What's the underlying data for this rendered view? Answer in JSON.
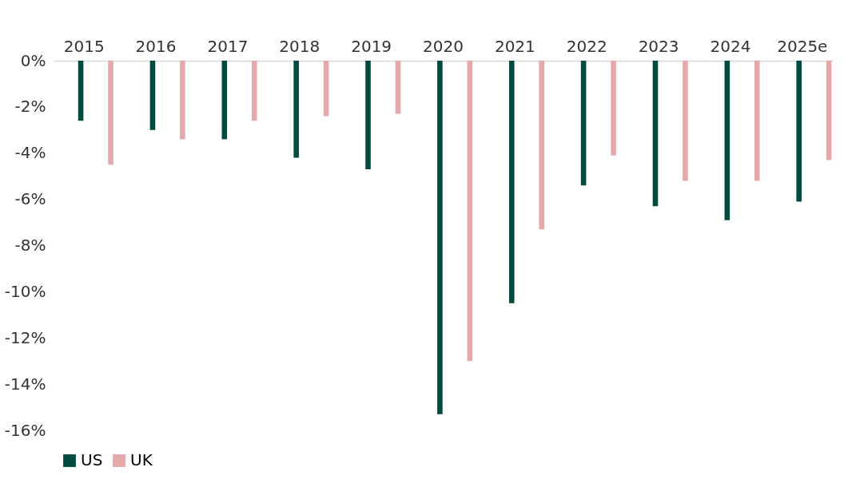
{
  "chart_data": {
    "type": "bar",
    "categories": [
      "2015",
      "2016",
      "2017",
      "2018",
      "2019",
      "2020",
      "2021",
      "2022",
      "2023",
      "2024",
      "2025e"
    ],
    "series": [
      {
        "name": "US",
        "color": "#004b3f",
        "values": [
          -2.6,
          -3.0,
          -3.4,
          -4.2,
          -4.7,
          -15.3,
          -10.5,
          -5.4,
          -6.3,
          -6.9,
          -6.1
        ]
      },
      {
        "name": "UK",
        "color": "#e5a9ab",
        "values": [
          -4.5,
          -3.4,
          -2.6,
          -2.4,
          -2.3,
          -13.0,
          -7.3,
          -4.1,
          -5.2,
          -5.2,
          -4.3
        ]
      }
    ],
    "ylim": [
      -16,
      0
    ],
    "yticks": [
      {
        "value": 0,
        "label": "0%"
      },
      {
        "value": -2,
        "label": "-2%"
      },
      {
        "value": -4,
        "label": "-4%"
      },
      {
        "value": -6,
        "label": "-6%"
      },
      {
        "value": -8,
        "label": "-8%"
      },
      {
        "value": -10,
        "label": "-10%"
      },
      {
        "value": -12,
        "label": "-12%"
      },
      {
        "value": -14,
        "label": "-14%"
      },
      {
        "value": -16,
        "label": "-16%"
      }
    ],
    "grid": false,
    "legend": "bottom"
  }
}
